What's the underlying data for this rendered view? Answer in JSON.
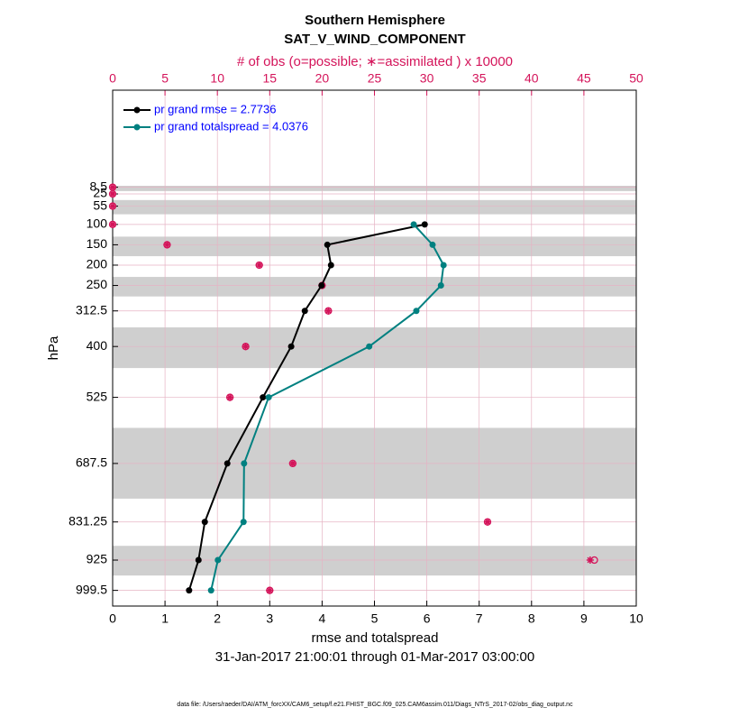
{
  "chart_data": {
    "type": "profile",
    "title": "Southern Hemisphere",
    "subtitle": "SAT_V_WIND_COMPONENT",
    "x2label": "# of obs (o=possible; ∗=assimilated ) x 10000",
    "xlabel": "rmse and totalspread",
    "ylabel": "hPa",
    "date_range": "31-Jan-2017 21:00:01 through 01-Mar-2017 03:00:00",
    "footer": "data file: /Users/raeder/DAI/ATM_forcXX/CAM6_setup/f.e21.FHIST_BGC.f09_025.CAM6assim.011/Diags_NTrS_2017-02/obs_diag_output.nc",
    "y": [
      8.5,
      25,
      55,
      100,
      150,
      200,
      250,
      312.5,
      400,
      525,
      687.5,
      831.25,
      925,
      999.5
    ],
    "xlim": [
      0,
      10
    ],
    "xticks": [
      0,
      1,
      2,
      3,
      4,
      5,
      6,
      7,
      8,
      9,
      10
    ],
    "x2lim": [
      0,
      50
    ],
    "x2ticks": [
      0,
      5,
      10,
      15,
      20,
      25,
      30,
      35,
      40,
      45,
      50
    ],
    "ylim": [
      1038,
      -230
    ],
    "yticks": [
      8.5,
      25,
      55,
      100,
      150,
      200,
      250,
      312.5,
      400,
      525,
      687.5,
      831.25,
      925,
      999.5
    ],
    "bands": [
      [
        5,
        18
      ],
      [
        40,
        75
      ],
      [
        130,
        178
      ],
      [
        229,
        277
      ],
      [
        353,
        453
      ],
      [
        600,
        774
      ],
      [
        890,
        963
      ]
    ],
    "grid": true,
    "legend": "upper left",
    "series": [
      {
        "name": "pr grand rmse = 2.7736",
        "color": "#000000",
        "values": [
          null,
          null,
          null,
          5.96,
          4.1,
          4.17,
          3.99,
          3.67,
          3.41,
          2.87,
          2.19,
          1.76,
          1.64,
          1.46
        ]
      },
      {
        "name": "pr grand totalspread = 4.0376",
        "color": "#008080",
        "values": [
          null,
          null,
          null,
          5.75,
          6.11,
          6.32,
          6.27,
          5.8,
          4.9,
          2.98,
          2.51,
          2.5,
          2.01,
          1.88
        ]
      }
    ],
    "obs_series": [
      {
        "marker": "o",
        "color": "#d4145a",
        "values": [
          0,
          0,
          0,
          0,
          5.2,
          14.0,
          20.0,
          20.6,
          12.7,
          11.2,
          17.2,
          35.8,
          46.0,
          15.0
        ]
      },
      {
        "marker": "*",
        "color": "#d4145a",
        "values": [
          0,
          0,
          0,
          0,
          5.2,
          14.0,
          20.0,
          20.6,
          12.7,
          11.2,
          17.2,
          35.8,
          45.6,
          15.0
        ]
      }
    ]
  }
}
